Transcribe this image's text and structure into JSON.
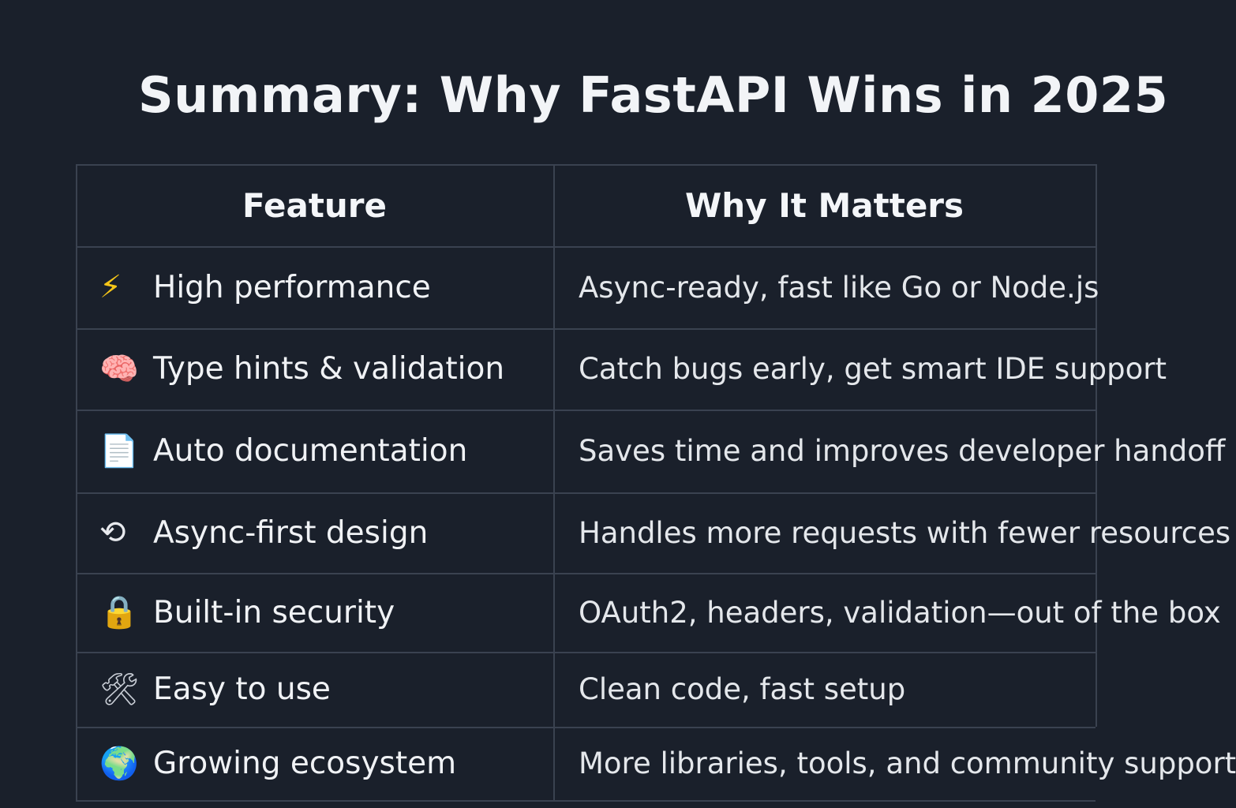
{
  "title": "Summary: Why FastAPI Wins in 2025",
  "table": {
    "headers": [
      "Feature",
      "Why It Matters"
    ],
    "rows": [
      {
        "icon": "lightning-icon",
        "glyph": "⚡",
        "icon_color": "#f5c518",
        "feature": "High performance",
        "why": "Async-ready, fast like Go or Node.js"
      },
      {
        "icon": "brain-icon",
        "glyph": "🧠",
        "icon_color": "#f08a9a",
        "feature": "Type hints & validation",
        "why": "Catch bugs early, get smart IDE support"
      },
      {
        "icon": "document-icon",
        "glyph": "📄",
        "icon_color": "#e8eaee",
        "feature": "Auto documentation",
        "why": "Saves time and improves developer handoff"
      },
      {
        "icon": "refresh-icon",
        "glyph": "⟲",
        "icon_color": "#e8eaee",
        "feature": "Async-first design",
        "why": "Handles more requests with fewer resources"
      },
      {
        "icon": "lock-icon",
        "glyph": "🔒",
        "icon_color": "#e0a84e",
        "feature": "Built-in security",
        "why": "OAuth2, headers, validation—out of the box"
      },
      {
        "icon": "tools-icon",
        "glyph": "🛠",
        "icon_color": "#c9ced6",
        "feature": "Easy to use",
        "why": "Clean code, fast setup"
      },
      {
        "icon": "globe-icon",
        "glyph": "🌍",
        "icon_color": "#4aa3df",
        "feature": "Growing ecosystem",
        "why": "More libraries, tools, and community support"
      }
    ]
  }
}
